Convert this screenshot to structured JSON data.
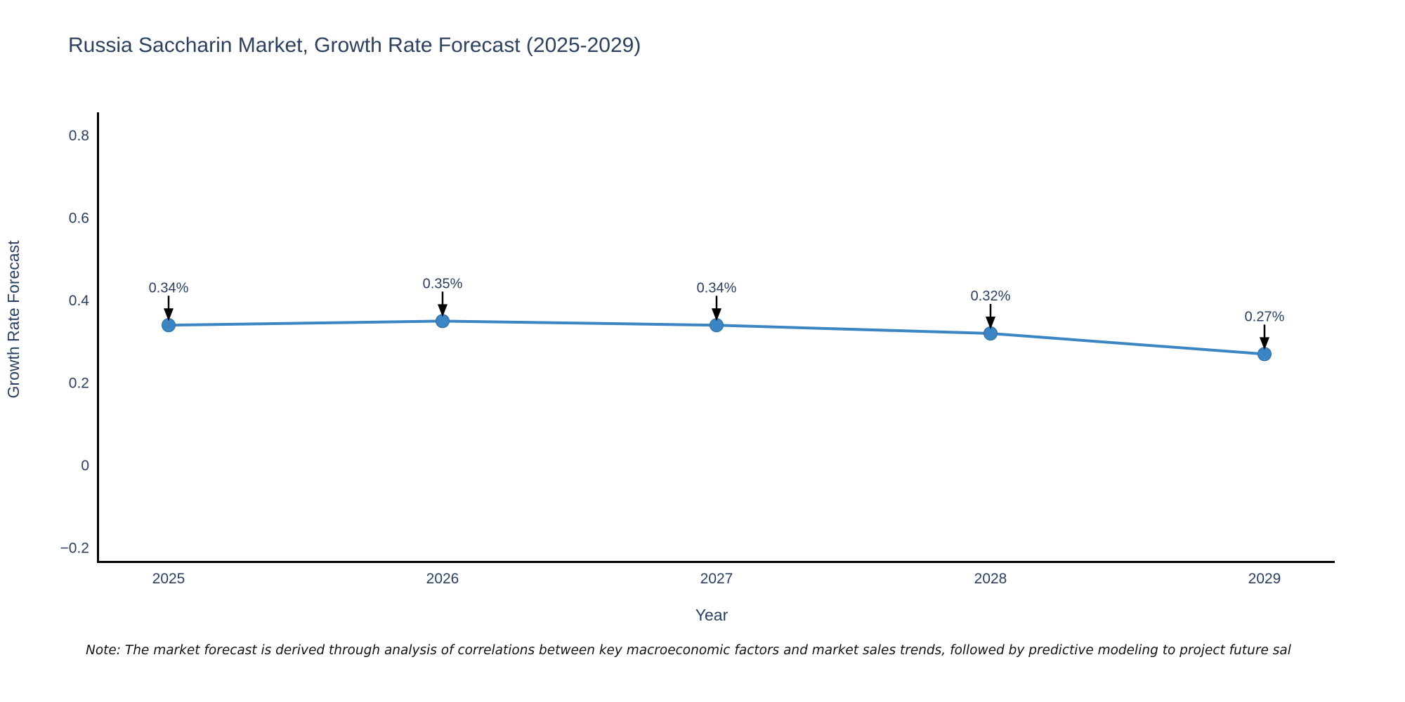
{
  "title": "Russia Saccharin Market, Growth Rate Forecast (2025-2029)",
  "note": "Note: The market forecast is derived through analysis of correlations between key macroeconomic factors and market sales trends, followed by predictive modeling to project future sal",
  "colors": {
    "line": "#3a85c2",
    "marker_fill": "#3a85c2",
    "marker_edge": "#2f6b9d",
    "axis": "#000000",
    "text": "#2a3f5f",
    "arrow": "#000000",
    "background": "#ffffff"
  },
  "chart_data": {
    "type": "line",
    "title": "Russia Saccharin Market, Growth Rate Forecast (2025-2029)",
    "xlabel": "Year",
    "ylabel": "Growth Rate Forecast",
    "x": [
      2025,
      2026,
      2027,
      2028,
      2029
    ],
    "y": [
      0.34,
      0.35,
      0.34,
      0.32,
      0.27
    ],
    "point_labels": [
      "0.34%",
      "0.35%",
      "0.34%",
      "0.32%",
      "0.27%"
    ],
    "x_tick_labels": [
      "2025",
      "2026",
      "2027",
      "2028",
      "2029"
    ],
    "y_ticks": [
      {
        "value": 0.8,
        "label": "0.8"
      },
      {
        "value": 0.6,
        "label": "0.6"
      },
      {
        "value": 0.4,
        "label": "0.4"
      },
      {
        "value": 0.2,
        "label": "0.2"
      },
      {
        "value": 0.0,
        "label": "0"
      },
      {
        "value": -0.2,
        "label": "−0.2"
      }
    ],
    "ylim": [
      -0.235,
      0.856
    ],
    "xlim": [
      2024.74,
      2029.26
    ],
    "grid": false,
    "legend": "none",
    "annotation_style": "value label with downward black arrow onto each marker"
  }
}
